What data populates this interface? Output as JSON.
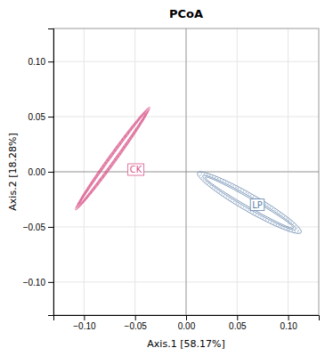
{
  "chart_data": {
    "type": "ellipse",
    "title": "PCoA",
    "xlabel": "Axis.1  [58.17%]",
    "ylabel": "Axis.2 [18.28%]",
    "xlim": [
      -0.13,
      0.13
    ],
    "ylim": [
      -0.13,
      0.13
    ],
    "xticks": [
      {
        "value": -0.1,
        "label": "−0.10"
      },
      {
        "value": -0.05,
        "label": "−0.05"
      },
      {
        "value": 0,
        "label": "0.00"
      },
      {
        "value": 0.05,
        "label": "0.05"
      },
      {
        "value": 0.1,
        "label": "0.10"
      }
    ],
    "yticks": [
      {
        "value": -0.1,
        "label": "−0.10"
      },
      {
        "value": -0.05,
        "label": "−0.05"
      },
      {
        "value": 0,
        "label": "0.00"
      },
      {
        "value": 0.05,
        "label": "0.05"
      },
      {
        "value": 0.1,
        "label": "0.10"
      }
    ],
    "grid": true,
    "hlines": [
      0
    ],
    "vlines": [
      0
    ],
    "series": [
      {
        "name": "CK",
        "color": "#D9578A",
        "label_at": [
          -0.057,
          0.002
        ],
        "ellipses": [
          {
            "center": [
              -0.072,
              0.012
            ],
            "width": 0.118,
            "height": 0.008,
            "angle": 52,
            "line_style": "solid"
          },
          {
            "center": [
              -0.072,
              0.012
            ],
            "width": 0.11446,
            "height": 0.0068,
            "angle": 52,
            "line_style": "solid"
          },
          {
            "center": [
              -0.072,
              0.012
            ],
            "width": 0.11092,
            "height": 0.0056,
            "angle": 52,
            "line_style": "solid"
          },
          {
            "center": [
              -0.072,
              0.012
            ],
            "width": 0.10738,
            "height": 0.0044,
            "angle": 52,
            "line_style": "solid"
          },
          {
            "center": [
              -0.072,
              0.012
            ],
            "width": 0.10384,
            "height": 0.0032,
            "angle": 52,
            "line_style": "solid"
          }
        ]
      },
      {
        "name": "LP",
        "color": "#5C7FA8",
        "label_at": [
          0.063,
          -0.03
        ],
        "ellipses": [
          {
            "center": [
              0.062,
              -0.028
            ],
            "width": 0.115,
            "height": 0.016,
            "angle": -28,
            "line_style": "solid"
          },
          {
            "center": [
              0.062,
              -0.028
            ],
            "width": 0.10925,
            "height": 0.01312,
            "angle": -28,
            "line_style": "dotted"
          },
          {
            "center": [
              0.062,
              -0.028
            ],
            "width": 0.1035,
            "height": 0.01024,
            "angle": -28,
            "line_style": "solid"
          },
          {
            "center": [
              0.062,
              -0.028
            ],
            "width": 0.09775,
            "height": 0.00736,
            "angle": -28,
            "line_style": "solid"
          }
        ]
      }
    ]
  }
}
